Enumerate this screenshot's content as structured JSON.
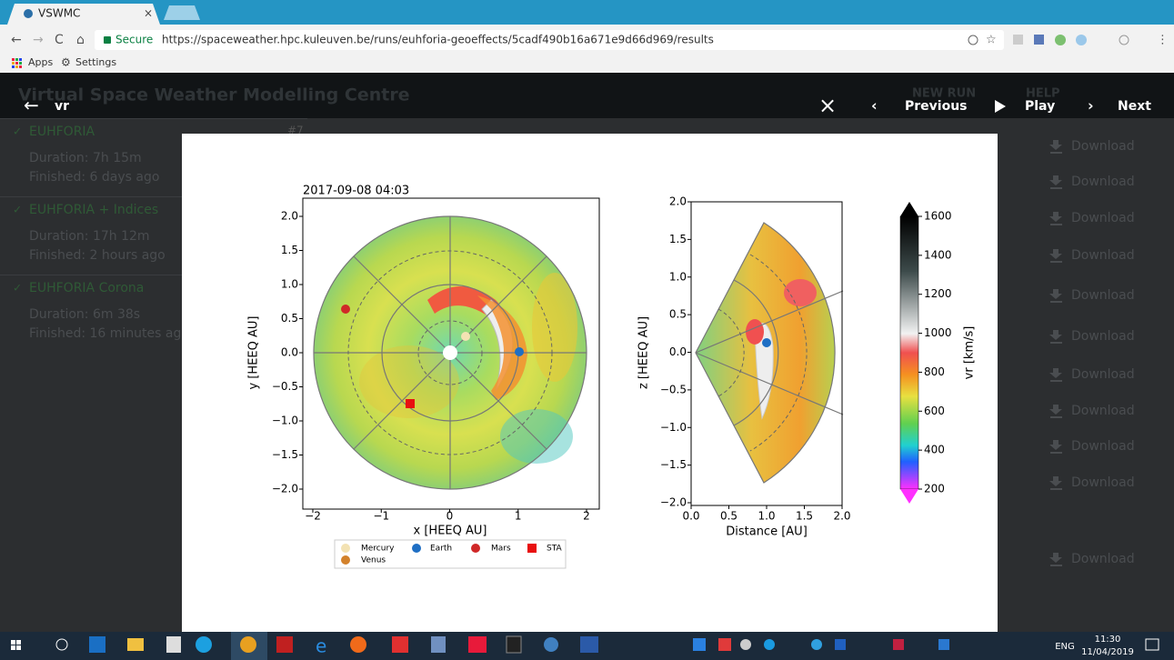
{
  "browser": {
    "tab_title": "VSWMC",
    "secure_label": "Secure",
    "url": "https://spaceweather.hpc.kuleuven.be/runs/euhforia-geoeffects/5cadf490b16a671e9d66d969/results",
    "bookmarks": [
      "Apps",
      "Settings"
    ]
  },
  "app": {
    "title": "Virtual Space Weather Modelling Centre",
    "nav": [
      "NEW RUN",
      "HELP"
    ],
    "run_number": "#7",
    "runs": [
      {
        "name": "EUHFORIA",
        "duration": "Duration: 7h 15m",
        "finished": "Finished: 6 days ago"
      },
      {
        "name": "EUHFORIA + Indices",
        "duration": "Duration: 17h 12m",
        "finished": "Finished: 2 hours ago"
      },
      {
        "name": "EUHFORIA Corona",
        "duration": "Duration: 6m 38s",
        "finished": "Finished: 16 minutes ago"
      }
    ],
    "downloads": [
      "Download",
      "Download",
      "Download",
      "Download",
      "Download",
      "Download",
      "Download",
      "Download",
      "Download",
      "Download",
      "Download"
    ]
  },
  "viewer": {
    "title": "vr",
    "controls": [
      "Previous",
      "Play",
      "Next"
    ]
  },
  "figure": {
    "timestamp": "2017-09-08 04:03",
    "left": {
      "xlabel": "x [HEEQ AU]",
      "ylabel": "y [HEEQ AU]",
      "xticks": [
        "−2",
        "−1",
        "0",
        "1",
        "2"
      ],
      "yticks": [
        "2.0",
        "1.5",
        "1.0",
        "0.5",
        "0.0",
        "−0.5",
        "−1.0",
        "−1.5",
        "−2.0"
      ]
    },
    "right": {
      "xlabel": "Distance [AU]",
      "ylabel": "z [HEEQ AU]",
      "xticks": [
        "0.0",
        "0.5",
        "1.0",
        "1.5",
        "2.0"
      ],
      "yticks": [
        "2.0",
        "1.5",
        "1.0",
        "0.5",
        "0.0",
        "−0.5",
        "−1.0",
        "−1.5",
        "−2.0"
      ]
    },
    "colorbar": {
      "label": "vr  [km/s]",
      "ticks": [
        "1600",
        "1400",
        "1200",
        "1000",
        "800",
        "600",
        "400",
        "200"
      ]
    },
    "legend": [
      "Mercury",
      "Earth",
      "Mars",
      "STA",
      "Venus"
    ]
  },
  "taskbar": {
    "language": "ENG",
    "time": "11:30",
    "date": "11/04/2019"
  }
}
